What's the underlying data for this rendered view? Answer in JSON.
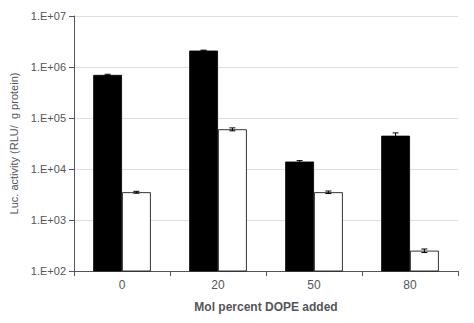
{
  "chart_data": {
    "type": "bar",
    "xlabel": "Mol percent DOPE added",
    "ylabel": "Luc. activity (RLU/  g protein)",
    "categories": [
      "0",
      "20",
      "50",
      "80"
    ],
    "series": [
      {
        "color": "#000000",
        "values": [
          700000,
          2100000,
          14000,
          45000
        ],
        "errors": [
          20000,
          40000,
          600,
          6000
        ]
      },
      {
        "color": "#ffffff",
        "values": [
          3500,
          60000,
          3500,
          250
        ],
        "errors": [
          150,
          4000,
          200,
          20
        ]
      }
    ],
    "log": "y",
    "ylim": [
      100,
      10000000
    ],
    "yticks": [
      {
        "value": 100,
        "label": "1.E+02"
      },
      {
        "value": 1000,
        "label": "1.E+03"
      },
      {
        "value": 10000,
        "label": "1.E+04"
      },
      {
        "value": 100000,
        "label": "1.E+05"
      },
      {
        "value": 1000000,
        "label": "1.E+06"
      },
      {
        "value": 10000000,
        "label": "1.E+07"
      }
    ],
    "grid": true
  }
}
